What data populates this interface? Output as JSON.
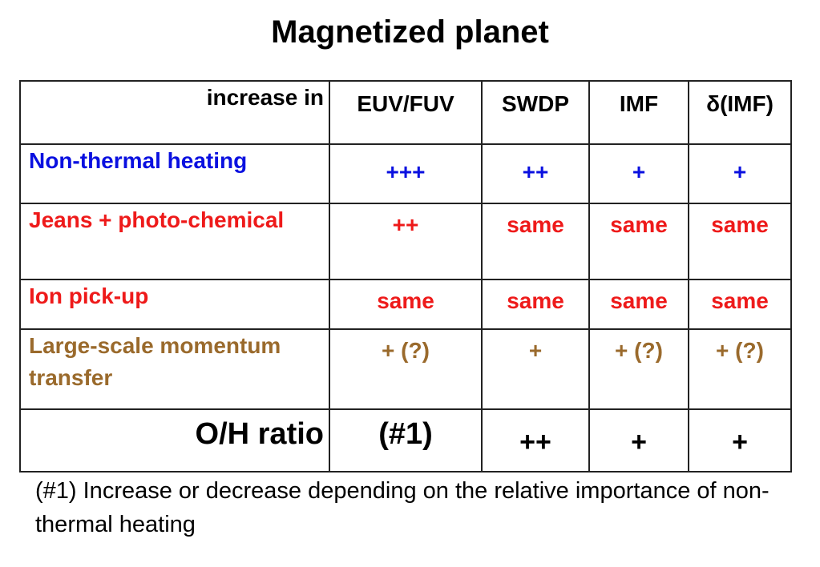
{
  "title": "Magnetized planet",
  "colors": {
    "blue": "#0a10e0",
    "red": "#ee1a1a",
    "brown": "#9a6a2c",
    "black": "#000000"
  },
  "table": {
    "header": {
      "label": "increase in",
      "columns": [
        "EUV/FUV",
        "SWDP",
        "IMF",
        "(IMF)"
      ],
      "delta_symbol": "δ"
    },
    "rows": [
      {
        "label": "Non-thermal heating",
        "values": [
          "+++",
          "++",
          "+",
          "+"
        ]
      },
      {
        "label": "Jeans + photo-chemical",
        "values": [
          "++",
          "same",
          "same",
          "same"
        ]
      },
      {
        "label": "Ion pick-up",
        "values": [
          "same",
          "same",
          "same",
          "same"
        ]
      },
      {
        "label": "Large-scale momentum transfer",
        "values": [
          "+ (?)",
          "+",
          "+ (?)",
          "+ (?)"
        ]
      },
      {
        "label": "O/H ratio",
        "values": [
          "(#1)",
          "++",
          "+",
          "+"
        ]
      }
    ]
  },
  "footnote": "(#1) Increase or decrease depending on the relative importance of non-thermal heating"
}
